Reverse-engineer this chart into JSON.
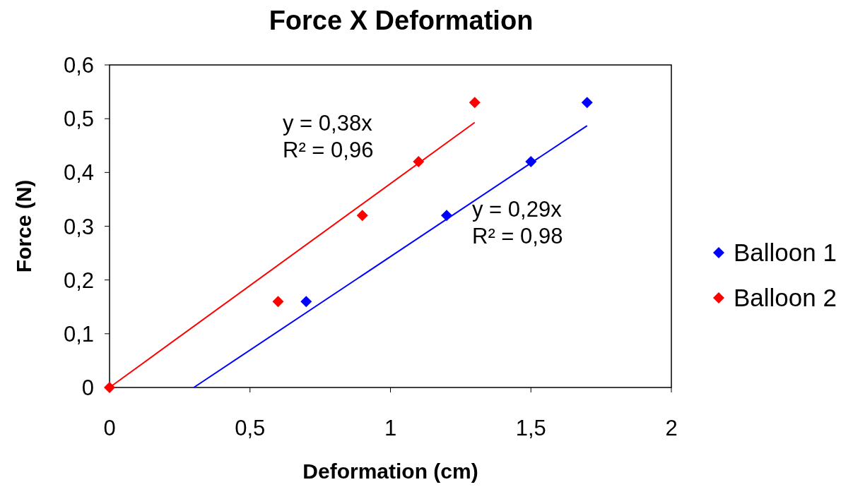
{
  "chart_data": {
    "type": "scatter",
    "title": "Force X Deformation",
    "xlabel": "Deformation (cm)",
    "ylabel": "Force (N)",
    "xlim": [
      0,
      2
    ],
    "xticks": [
      0,
      {
        "value": 0.5,
        "label": "0,5"
      },
      1,
      {
        "value": 1.5,
        "label": "1,5"
      },
      2
    ],
    "ylim": [
      0,
      0.6
    ],
    "yticks": [
      0,
      {
        "value": 0.1,
        "label": "0,1"
      },
      {
        "value": 0.2,
        "label": "0,2"
      },
      {
        "value": 0.3,
        "label": "0,3"
      },
      {
        "value": 0.4,
        "label": "0,4"
      },
      {
        "value": 0.5,
        "label": "0,5"
      },
      {
        "value": 0.6,
        "label": "0,6"
      }
    ],
    "grid": false,
    "legend": "right",
    "marker": "diamond",
    "series": [
      {
        "name": "Balloon 1",
        "color": "#0000ff",
        "x": [
          0.7,
          1.2,
          1.5,
          1.7
        ],
        "values": [
          0.16,
          0.32,
          0.42,
          0.53
        ]
      },
      {
        "name": "Balloon 2",
        "color": "#ff0000",
        "x": [
          0,
          0.6,
          0.9,
          1.1,
          1.3
        ],
        "values": [
          0,
          0.16,
          0.32,
          0.42,
          0.53
        ]
      },
      {
        "type": "line",
        "marker": "none",
        "color": "#0000ff",
        "x": [
          0.3,
          1.7
        ],
        "values": [
          0,
          0.487
        ]
      },
      {
        "type": "line",
        "marker": "none",
        "color": "#ff0000",
        "x": [
          0,
          1.3
        ],
        "values": [
          0,
          0.493
        ]
      }
    ],
    "annotations": [
      "y = 0,38x\nR² = 0,96",
      "y = 0,29x\nR² = 0,98"
    ]
  }
}
